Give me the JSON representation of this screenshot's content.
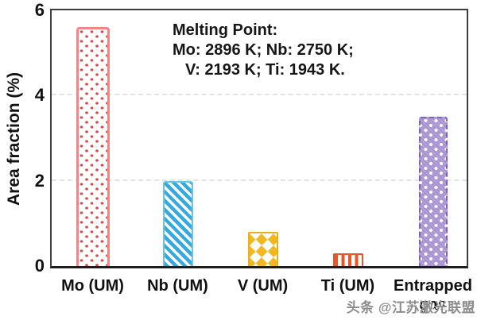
{
  "chart_data": {
    "type": "bar",
    "categories": [
      "Mo (UM)",
      "Nb (UM)",
      "V (UM)",
      "Ti (UM)",
      "Entrapped gas"
    ],
    "values": [
      5.6,
      2.0,
      0.8,
      0.3,
      3.5
    ],
    "title": "",
    "xlabel": "",
    "ylabel": "Area fraction (%)",
    "ylim": [
      0,
      6
    ],
    "yticks": [
      0,
      2,
      4,
      6
    ],
    "gridlines": [
      2,
      4
    ],
    "grid": "dashed horizontal gridlines at 2 and 4",
    "legend": "none",
    "annotation": {
      "line1": "Melting Point:",
      "line2": "Mo: 2896 K; Nb: 2750 K;",
      "line3": "V: 2193 K;  Ti: 1943 K."
    },
    "bar_styles": [
      {
        "name": "mo-bar",
        "pattern": "dots",
        "color": "#e04747",
        "border": "#f48585"
      },
      {
        "name": "nb-bar",
        "pattern": "diagonal-stripes",
        "color": "#36a9de",
        "border": "#6fc3e7"
      },
      {
        "name": "v-bar",
        "pattern": "diamond-checker",
        "color": "#f3b71f",
        "border": "#eab018"
      },
      {
        "name": "ti-bar",
        "pattern": "vertical-stripes",
        "color": "#e8572c",
        "border": "#e8572c"
      },
      {
        "name": "entrapped-gas-bar",
        "pattern": "white-dots-crosshatch",
        "color": "#a690d1",
        "border": "#7f63b9"
      }
    ]
  },
  "watermark": {
    "text": "头条 @江苏激光联盟",
    "color": "#8c8c8c"
  }
}
